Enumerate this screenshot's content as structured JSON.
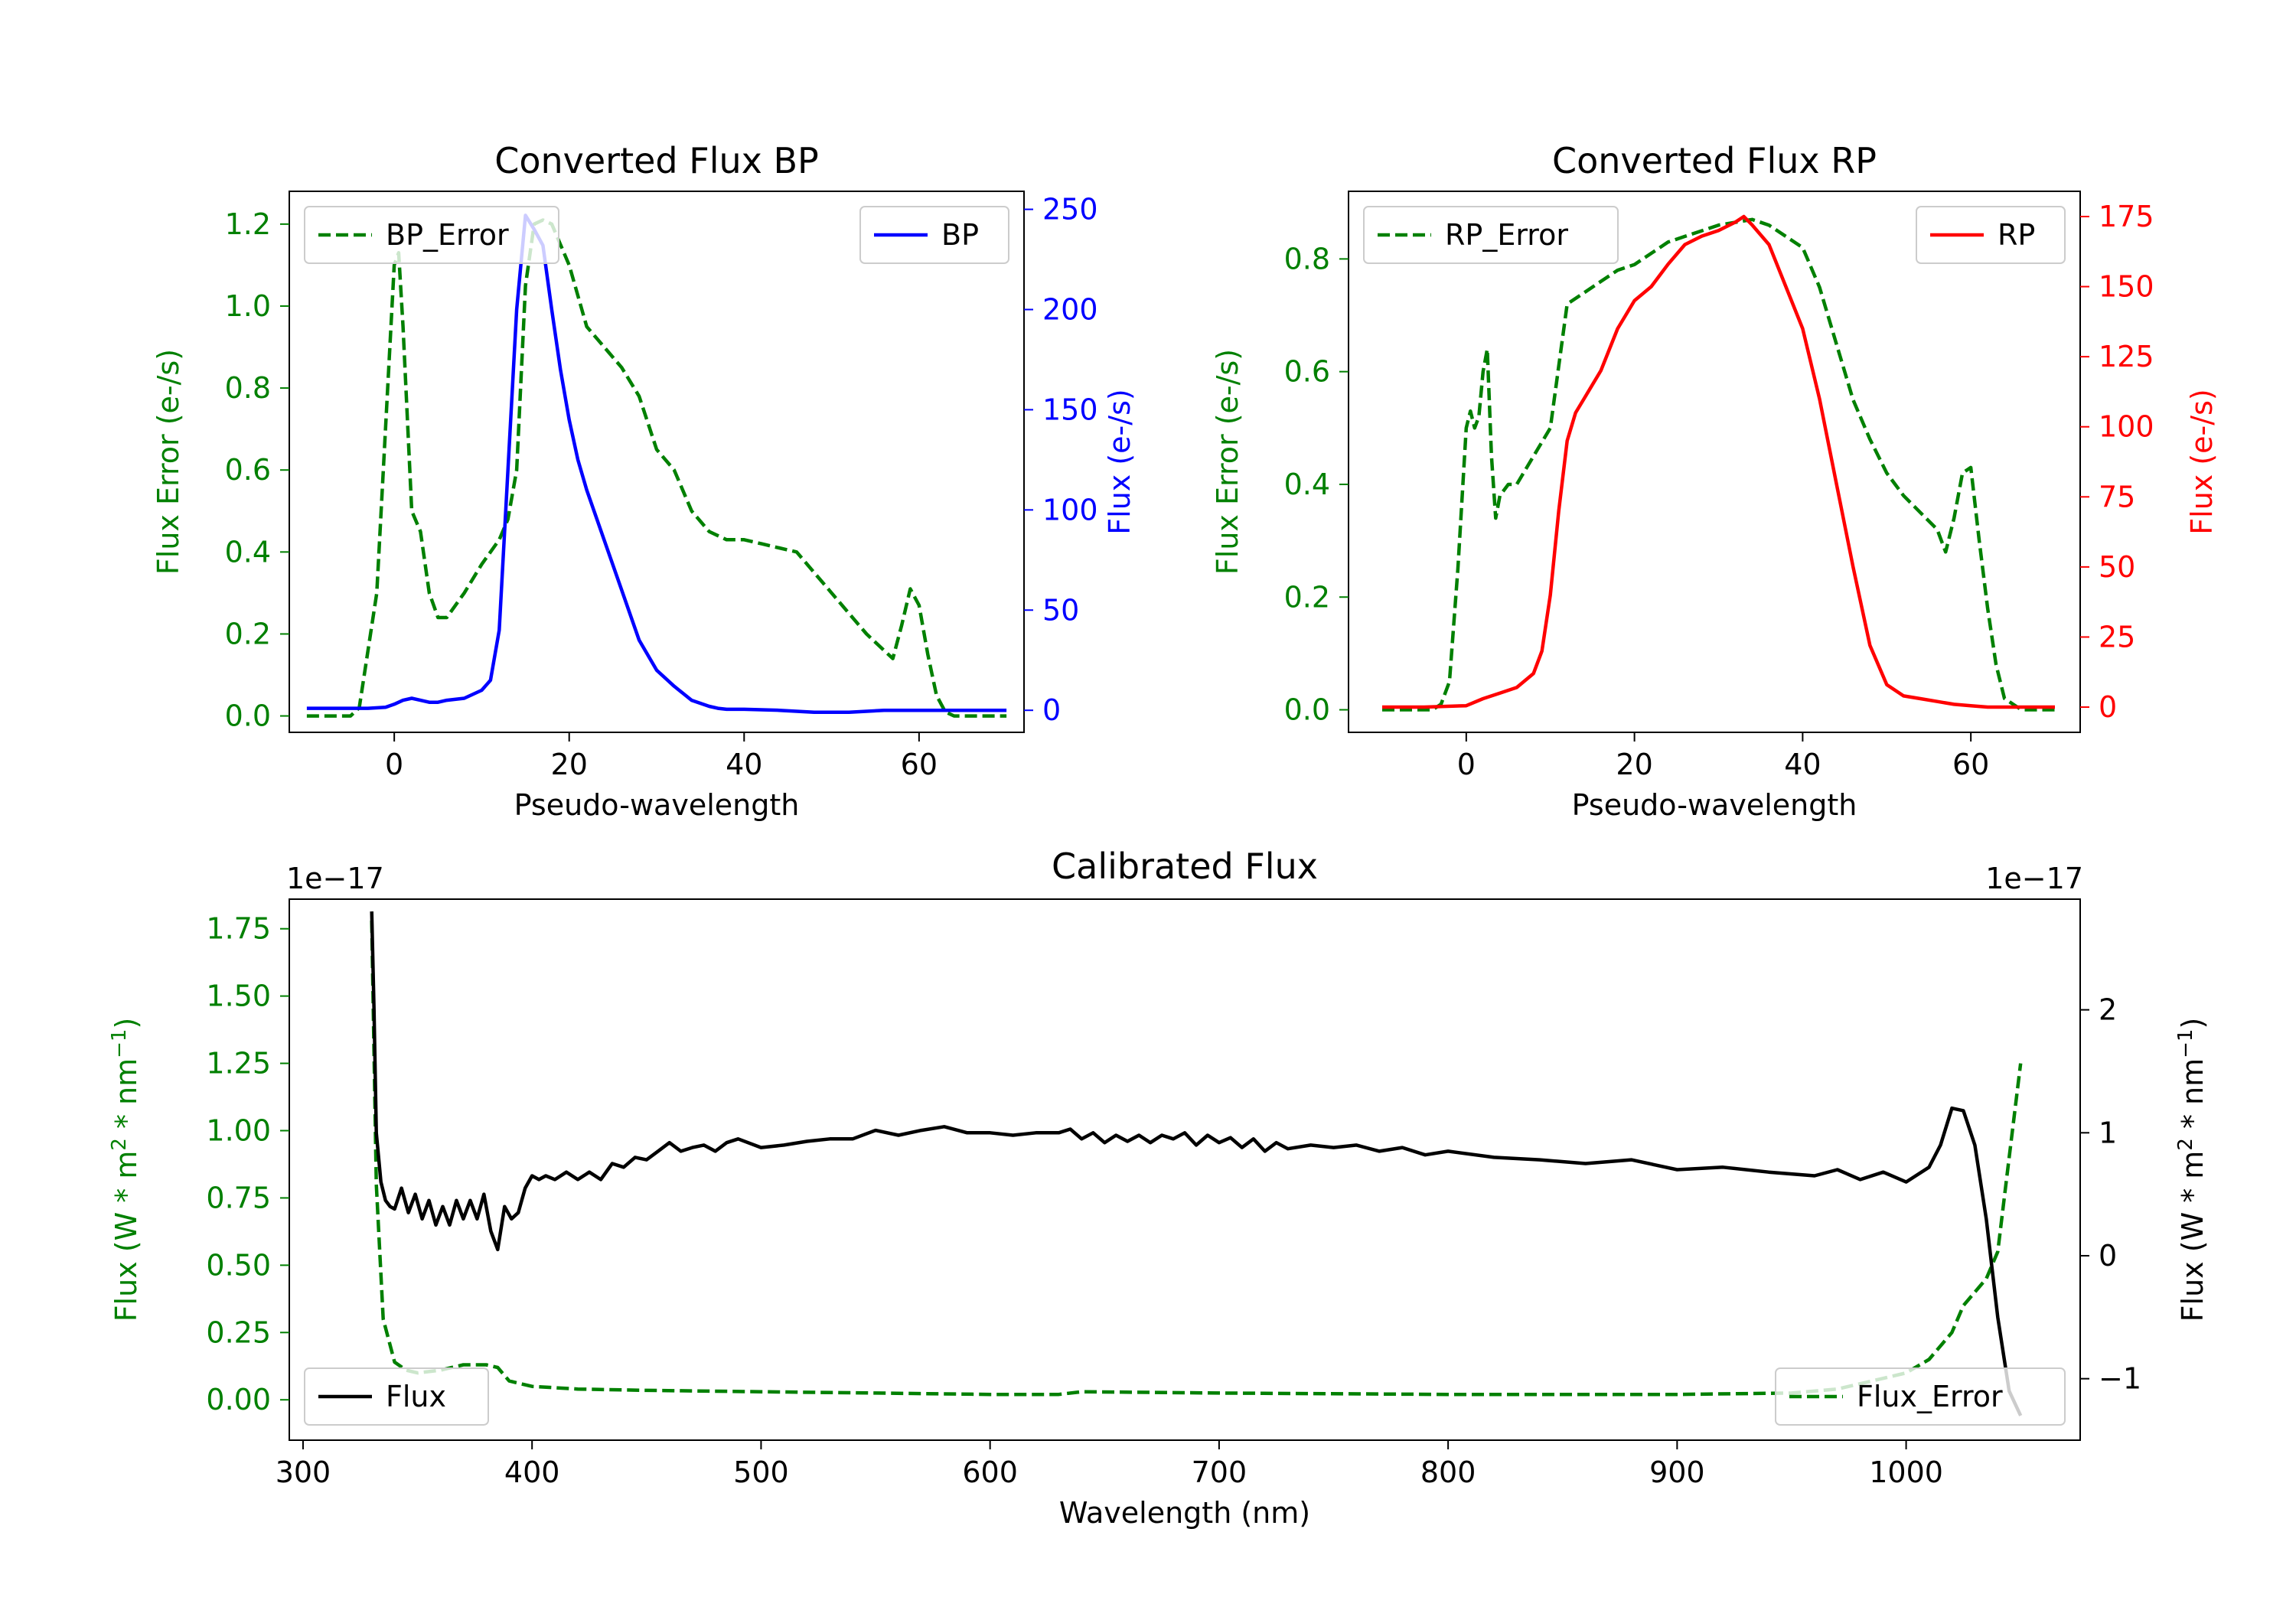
{
  "chart_data": [
    {
      "id": "bp",
      "type": "line",
      "title": "Converted Flux BP",
      "xlabel": "Pseudo-wavelength",
      "xlim": [
        -12,
        72
      ],
      "xticks": [
        0,
        20,
        40,
        60
      ],
      "left_axis": {
        "label": "Flux Error (e-/s)",
        "color": "#008000",
        "lim": [
          -0.04,
          1.28
        ],
        "ticks": [
          0.0,
          0.2,
          0.4,
          0.6,
          0.8,
          1.0,
          1.2
        ],
        "tick_labels": [
          "0.0",
          "0.2",
          "0.4",
          "0.6",
          "0.8",
          "1.0",
          "1.2"
        ]
      },
      "right_axis": {
        "label": "Flux (e-/s)",
        "color": "#0000ff",
        "lim": [
          -11,
          259
        ],
        "ticks": [
          0,
          50,
          100,
          150,
          200,
          250
        ],
        "tick_labels": [
          "0",
          "50",
          "100",
          "150",
          "200",
          "250"
        ]
      },
      "series": [
        {
          "name": "BP_Error",
          "axis": "left",
          "color": "#008000",
          "dash": true,
          "x": [
            -10,
            -5,
            -4,
            -2,
            0,
            0.5,
            1,
            2,
            3,
            4,
            5,
            6,
            8,
            10,
            12,
            13,
            14,
            15,
            16,
            17,
            18,
            20,
            22,
            24,
            26,
            28,
            30,
            32,
            34,
            36,
            38,
            40,
            42,
            44,
            46,
            48,
            50,
            52,
            54,
            56,
            57,
            58,
            59,
            60,
            61,
            62,
            63,
            64,
            66,
            68,
            70
          ],
          "y": [
            0,
            0,
            0.02,
            0.3,
            1.1,
            1.13,
            0.95,
            0.5,
            0.45,
            0.3,
            0.24,
            0.24,
            0.3,
            0.37,
            0.43,
            0.48,
            0.6,
            1.05,
            1.2,
            1.21,
            1.2,
            1.1,
            0.95,
            0.9,
            0.85,
            0.78,
            0.65,
            0.6,
            0.5,
            0.45,
            0.43,
            0.43,
            0.42,
            0.41,
            0.4,
            0.35,
            0.3,
            0.25,
            0.2,
            0.16,
            0.14,
            0.22,
            0.31,
            0.27,
            0.15,
            0.05,
            0.01,
            0,
            0,
            0,
            0
          ]
        },
        {
          "name": "BP",
          "axis": "right",
          "color": "#0000ff",
          "dash": false,
          "x": [
            -10,
            -5,
            -3,
            -1,
            0,
            1,
            2,
            3,
            4,
            5,
            6,
            8,
            10,
            11,
            12,
            13,
            14,
            15,
            16,
            17,
            18,
            19,
            20,
            21,
            22,
            24,
            26,
            28,
            30,
            32,
            34,
            36,
            37,
            38,
            40,
            44,
            48,
            52,
            56,
            60,
            64,
            70
          ],
          "y": [
            1,
            1,
            1,
            1.5,
            3,
            5,
            6,
            5,
            4,
            4,
            5,
            6,
            10,
            15,
            40,
            120,
            200,
            247,
            240,
            232,
            200,
            170,
            145,
            125,
            110,
            85,
            60,
            35,
            20,
            12,
            5,
            2,
            1,
            0.5,
            0.5,
            0,
            -1,
            -1,
            0,
            0,
            0,
            0
          ]
        }
      ],
      "legends": [
        {
          "position": "upper-left",
          "series": "BP_Error",
          "label": "BP_Error"
        },
        {
          "position": "upper-right",
          "series": "BP",
          "label": "BP"
        }
      ]
    },
    {
      "id": "rp",
      "type": "line",
      "title": "Converted Flux RP",
      "xlabel": "Pseudo-wavelength",
      "xlim": [
        -14,
        73
      ],
      "xticks": [
        0,
        20,
        40,
        60
      ],
      "left_axis": {
        "label": "Flux Error (e-/s)",
        "color": "#008000",
        "lim": [
          -0.04,
          0.92
        ],
        "ticks": [
          0.0,
          0.2,
          0.4,
          0.6,
          0.8
        ],
        "tick_labels": [
          "0.0",
          "0.2",
          "0.4",
          "0.6",
          "0.8"
        ]
      },
      "right_axis": {
        "label": "Flux (e-/s)",
        "color": "#ff0000",
        "lim": [
          -9,
          184
        ],
        "ticks": [
          0,
          25,
          50,
          75,
          100,
          125,
          150,
          175
        ],
        "tick_labels": [
          "0",
          "25",
          "50",
          "75",
          "100",
          "125",
          "150",
          "175"
        ]
      },
      "series": [
        {
          "name": "RP_Error",
          "axis": "left",
          "color": "#008000",
          "dash": true,
          "x": [
            -10,
            -4,
            -3,
            -2,
            -1,
            0,
            0.5,
            1,
            1.5,
            2,
            2.5,
            3,
            3.5,
            4,
            5,
            6,
            8,
            10,
            12,
            14,
            16,
            18,
            20,
            22,
            24,
            26,
            28,
            30,
            32,
            34,
            36,
            38,
            40,
            42,
            44,
            46,
            48,
            50,
            52,
            54,
            56,
            57,
            58,
            59,
            60,
            61,
            62,
            63,
            64,
            66,
            70
          ],
          "y": [
            0,
            0,
            0.01,
            0.05,
            0.25,
            0.5,
            0.53,
            0.5,
            0.52,
            0.6,
            0.64,
            0.45,
            0.34,
            0.38,
            0.4,
            0.4,
            0.45,
            0.5,
            0.72,
            0.74,
            0.76,
            0.78,
            0.79,
            0.81,
            0.83,
            0.84,
            0.85,
            0.86,
            0.865,
            0.87,
            0.86,
            0.84,
            0.82,
            0.75,
            0.65,
            0.55,
            0.48,
            0.42,
            0.38,
            0.35,
            0.32,
            0.28,
            0.34,
            0.42,
            0.43,
            0.3,
            0.18,
            0.08,
            0.02,
            0,
            0
          ]
        },
        {
          "name": "RP",
          "axis": "right",
          "color": "#ff0000",
          "dash": false,
          "x": [
            -10,
            -5,
            0,
            2,
            4,
            6,
            8,
            9,
            10,
            11,
            12,
            13,
            14,
            16,
            18,
            20,
            22,
            24,
            26,
            28,
            30,
            32,
            33,
            34,
            36,
            38,
            40,
            42,
            44,
            46,
            48,
            50,
            52,
            54,
            56,
            58,
            60,
            62,
            64,
            66,
            70
          ],
          "y": [
            0,
            0,
            0.5,
            3,
            5,
            7,
            12,
            20,
            40,
            70,
            95,
            105,
            110,
            120,
            135,
            145,
            150,
            158,
            165,
            168,
            170,
            173,
            175,
            172,
            165,
            150,
            135,
            110,
            80,
            50,
            22,
            8,
            4,
            3,
            2,
            1,
            0.5,
            0,
            0,
            0,
            0
          ]
        }
      ],
      "legends": [
        {
          "position": "upper-left",
          "series": "RP_Error",
          "label": "RP_Error"
        },
        {
          "position": "upper-right",
          "series": "RP",
          "label": "RP"
        }
      ]
    },
    {
      "id": "cal",
      "type": "line",
      "title": "Calibrated Flux",
      "xlabel": "Wavelength (nm)",
      "xlim": [
        294,
        1076
      ],
      "xticks": [
        300,
        400,
        500,
        600,
        700,
        800,
        900,
        1000
      ],
      "left_axis": {
        "label": "Flux (W * m2 * nm-1)",
        "label_parts": {
          "text1": "Flux (W * m",
          "sup1": "2",
          "text2": " * nm",
          "sup2": "−1",
          "text3": ")"
        },
        "color": "#008000",
        "lim": [
          -0.15,
          1.86
        ],
        "offset_text": "1e−17",
        "ticks": [
          0.0,
          0.25,
          0.5,
          0.75,
          1.0,
          1.25,
          1.5,
          1.75
        ],
        "tick_labels": [
          "0.00",
          "0.25",
          "0.50",
          "0.75",
          "1.00",
          "1.25",
          "1.50",
          "1.75"
        ]
      },
      "right_axis": {
        "label": "Flux (W * m2 * nm-1)",
        "label_parts": {
          "text1": "Flux (W * m",
          "sup1": "2",
          "text2": " * nm",
          "sup2": "−1",
          "text3": ")"
        },
        "color": "#000000",
        "lim": [
          -1.5,
          2.9
        ],
        "offset_text": "1e−17",
        "ticks": [
          -1,
          0,
          1,
          2
        ],
        "tick_labels": [
          "−1",
          "0",
          "1",
          "2"
        ]
      },
      "series": [
        {
          "name": "Flux_Error",
          "axis": "left",
          "color": "#008000",
          "dash": true,
          "x": [
            330,
            332,
            335,
            340,
            345,
            350,
            360,
            370,
            380,
            385,
            390,
            400,
            420,
            450,
            500,
            550,
            600,
            630,
            640,
            700,
            800,
            900,
            950,
            970,
            1000,
            1010,
            1020,
            1025,
            1030,
            1035,
            1040,
            1045,
            1050
          ],
          "y": [
            1.78,
            0.8,
            0.3,
            0.14,
            0.11,
            0.1,
            0.11,
            0.13,
            0.13,
            0.12,
            0.07,
            0.05,
            0.04,
            0.035,
            0.03,
            0.025,
            0.02,
            0.02,
            0.03,
            0.025,
            0.02,
            0.02,
            0.025,
            0.04,
            0.1,
            0.15,
            0.25,
            0.35,
            0.4,
            0.45,
            0.55,
            0.9,
            1.25
          ]
        },
        {
          "name": "Flux",
          "axis": "right",
          "color": "#000000",
          "dash": false,
          "x": [
            330,
            331,
            332,
            334,
            336,
            338,
            340,
            343,
            346,
            349,
            352,
            355,
            358,
            361,
            364,
            367,
            370,
            373,
            376,
            379,
            382,
            385,
            388,
            391,
            394,
            397,
            400,
            403,
            406,
            410,
            415,
            420,
            425,
            430,
            435,
            440,
            445,
            450,
            455,
            460,
            465,
            470,
            475,
            480,
            485,
            490,
            500,
            510,
            520,
            530,
            540,
            550,
            560,
            570,
            580,
            590,
            600,
            610,
            620,
            630,
            635,
            640,
            645,
            650,
            655,
            660,
            665,
            670,
            675,
            680,
            685,
            690,
            695,
            700,
            705,
            710,
            715,
            720,
            725,
            730,
            740,
            750,
            760,
            770,
            780,
            790,
            800,
            820,
            840,
            860,
            880,
            900,
            920,
            940,
            960,
            970,
            980,
            990,
            1000,
            1010,
            1015,
            1020,
            1025,
            1030,
            1035,
            1040,
            1045,
            1050
          ],
          "y": [
            2.8,
            2.0,
            1.0,
            0.6,
            0.45,
            0.4,
            0.38,
            0.55,
            0.35,
            0.5,
            0.3,
            0.45,
            0.25,
            0.4,
            0.25,
            0.45,
            0.3,
            0.45,
            0.3,
            0.5,
            0.2,
            0.05,
            0.4,
            0.3,
            0.35,
            0.55,
            0.65,
            0.62,
            0.65,
            0.62,
            0.68,
            0.62,
            0.68,
            0.62,
            0.75,
            0.72,
            0.8,
            0.78,
            0.85,
            0.92,
            0.85,
            0.88,
            0.9,
            0.85,
            0.92,
            0.95,
            0.88,
            0.9,
            0.93,
            0.95,
            0.95,
            1.02,
            0.98,
            1.02,
            1.05,
            1.0,
            1.0,
            0.98,
            1.0,
            1.0,
            1.03,
            0.95,
            1.0,
            0.92,
            0.98,
            0.93,
            0.98,
            0.92,
            0.98,
            0.95,
            1.0,
            0.9,
            0.98,
            0.92,
            0.96,
            0.88,
            0.95,
            0.85,
            0.92,
            0.87,
            0.9,
            0.88,
            0.9,
            0.85,
            0.88,
            0.82,
            0.85,
            0.8,
            0.78,
            0.75,
            0.78,
            0.7,
            0.72,
            0.68,
            0.65,
            0.7,
            0.62,
            0.68,
            0.6,
            0.72,
            0.9,
            1.2,
            1.18,
            0.9,
            0.3,
            -0.5,
            -1.1,
            -1.3
          ]
        }
      ],
      "legends": [
        {
          "position": "lower-left",
          "series": "Flux",
          "label": "Flux"
        },
        {
          "position": "lower-right",
          "series": "Flux_Error",
          "label": "Flux_Error"
        }
      ]
    }
  ]
}
